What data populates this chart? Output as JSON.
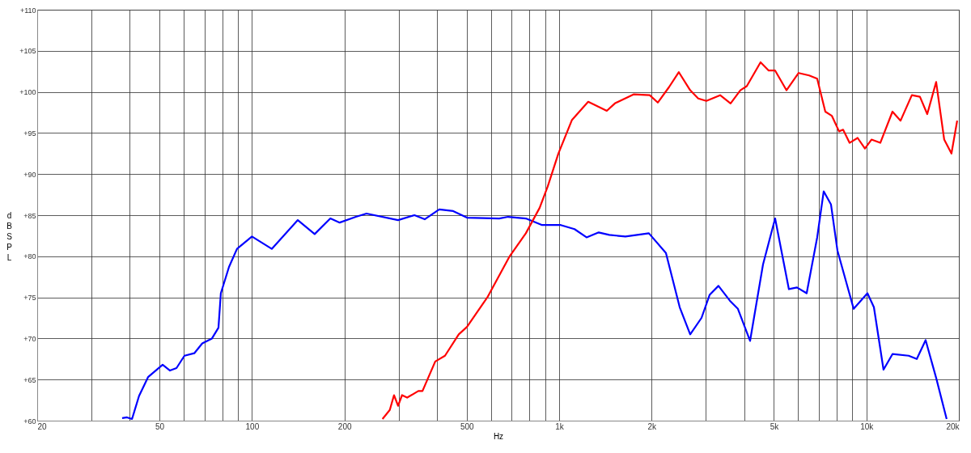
{
  "chart_data": {
    "type": "line",
    "xlabel": "Hz",
    "ylabel": "dB SPL",
    "log": "x",
    "grid": true,
    "xlim": [
      20,
      20000
    ],
    "ylim": [
      60,
      110
    ],
    "xticks": [
      20,
      {
        "value": 30,
        "label": null
      },
      {
        "value": 40,
        "label": null
      },
      50,
      {
        "value": 60,
        "label": null
      },
      {
        "value": 70,
        "label": null
      },
      {
        "value": 80,
        "label": null
      },
      {
        "value": 90,
        "label": null
      },
      100,
      200,
      {
        "value": 300,
        "label": null
      },
      {
        "value": 400,
        "label": null
      },
      500,
      {
        "value": 600,
        "label": null
      },
      {
        "value": 700,
        "label": null
      },
      {
        "value": 800,
        "label": null
      },
      {
        "value": 900,
        "label": null
      },
      {
        "value": 1000,
        "label": "1k"
      },
      {
        "value": 2000,
        "label": "2k"
      },
      {
        "value": 3000,
        "label": null
      },
      {
        "value": 4000,
        "label": null
      },
      {
        "value": 5000,
        "label": "5k"
      },
      {
        "value": 6000,
        "label": null
      },
      {
        "value": 7000,
        "label": null
      },
      {
        "value": 8000,
        "label": null
      },
      {
        "value": 9000,
        "label": null
      },
      {
        "value": 10000,
        "label": "10k"
      },
      {
        "value": 20000,
        "label": "20k"
      }
    ],
    "yticks": [
      {
        "value": 60,
        "label": "+60"
      },
      {
        "value": 65,
        "label": "+65"
      },
      {
        "value": 70,
        "label": "+70"
      },
      {
        "value": 75,
        "label": "+75"
      },
      {
        "value": 80,
        "label": "+80"
      },
      {
        "value": 85,
        "label": "+85"
      },
      {
        "value": 90,
        "label": "+90"
      },
      {
        "value": 95,
        "label": "+95"
      },
      {
        "value": 100,
        "label": "+100"
      },
      {
        "value": 105,
        "label": "+105"
      },
      {
        "value": 110,
        "label": "+110"
      }
    ],
    "series": [
      {
        "color": "#0000ff",
        "x": [
          37.8,
          39.2,
          40.7,
          42.9,
          45.9,
          51.2,
          54.1,
          56.8,
          60.3,
          64.9,
          68.9,
          74.1,
          77.8,
          79.2,
          84.2,
          89.4,
          100,
          116,
          141,
          160,
          180,
          193,
          218,
          236,
          299,
          338,
          365,
          407,
          452,
          501,
          638,
          682,
          779,
          880,
          1012,
          1122,
          1228,
          1345,
          1456,
          1643,
          1959,
          2226,
          2468,
          2670,
          2906,
          3088,
          3300,
          3594,
          3818,
          4182,
          4608,
          5046,
          5594,
          5944,
          6392,
          6916,
          7262,
          7670,
          8050,
          9090,
          10080,
          10580,
          11370,
          12160,
          13730,
          14590,
          15590,
          16870,
          18250
        ],
        "values": [
          60.3,
          60.4,
          60.2,
          63.0,
          65.3,
          66.8,
          66.1,
          66.4,
          67.9,
          68.2,
          69.4,
          70.0,
          71.3,
          75.5,
          78.7,
          80.9,
          82.4,
          80.9,
          84.4,
          82.7,
          84.6,
          84.1,
          84.8,
          85.2,
          84.4,
          85.0,
          84.5,
          85.7,
          85.5,
          84.7,
          84.6,
          84.8,
          84.6,
          83.8,
          83.8,
          83.3,
          82.3,
          82.9,
          82.6,
          82.4,
          82.8,
          80.4,
          73.8,
          70.5,
          72.5,
          75.3,
          76.4,
          74.6,
          73.6,
          69.7,
          79.0,
          84.6,
          76.0,
          76.2,
          75.5,
          82.3,
          87.9,
          86.3,
          80.7,
          73.6,
          75.5,
          73.8,
          66.2,
          68.1,
          67.9,
          67.5,
          69.8,
          65.2,
          60.2
        ]
      },
      {
        "color": "#ff0000",
        "x": [
          266,
          281,
          290,
          299,
          308,
          320,
          348,
          359,
          395,
          425,
          471,
          501,
          586,
          690,
          779,
          864,
          918,
          994,
          1101,
          1243,
          1429,
          1518,
          1746,
          1971,
          2094,
          2280,
          2452,
          2670,
          2836,
          3013,
          3342,
          3614,
          3888,
          4080,
          4524,
          4808,
          5046,
          5494,
          6018,
          6510,
          6916,
          7350,
          7716,
          8148,
          8398,
          8816,
          9366,
          9892,
          10390,
          11100,
          12160,
          12920,
          14060,
          14940,
          15780,
          16870,
          17920,
          18920,
          19750
        ],
        "values": [
          60.2,
          61.3,
          63.1,
          61.8,
          63.1,
          62.8,
          63.6,
          63.6,
          67.2,
          67.9,
          70.5,
          71.4,
          75.1,
          80.0,
          82.8,
          85.9,
          88.5,
          92.5,
          96.6,
          98.8,
          97.7,
          98.6,
          99.7,
          99.6,
          98.7,
          100.6,
          102.4,
          100.2,
          99.2,
          98.9,
          99.6,
          98.6,
          100.2,
          100.7,
          103.6,
          102.6,
          102.6,
          100.2,
          102.3,
          102.0,
          101.6,
          97.6,
          97.1,
          95.2,
          95.4,
          93.8,
          94.4,
          93.1,
          94.2,
          93.8,
          97.6,
          96.5,
          99.6,
          99.4,
          97.3,
          101.2,
          94.2,
          92.5,
          96.5
        ]
      }
    ]
  }
}
